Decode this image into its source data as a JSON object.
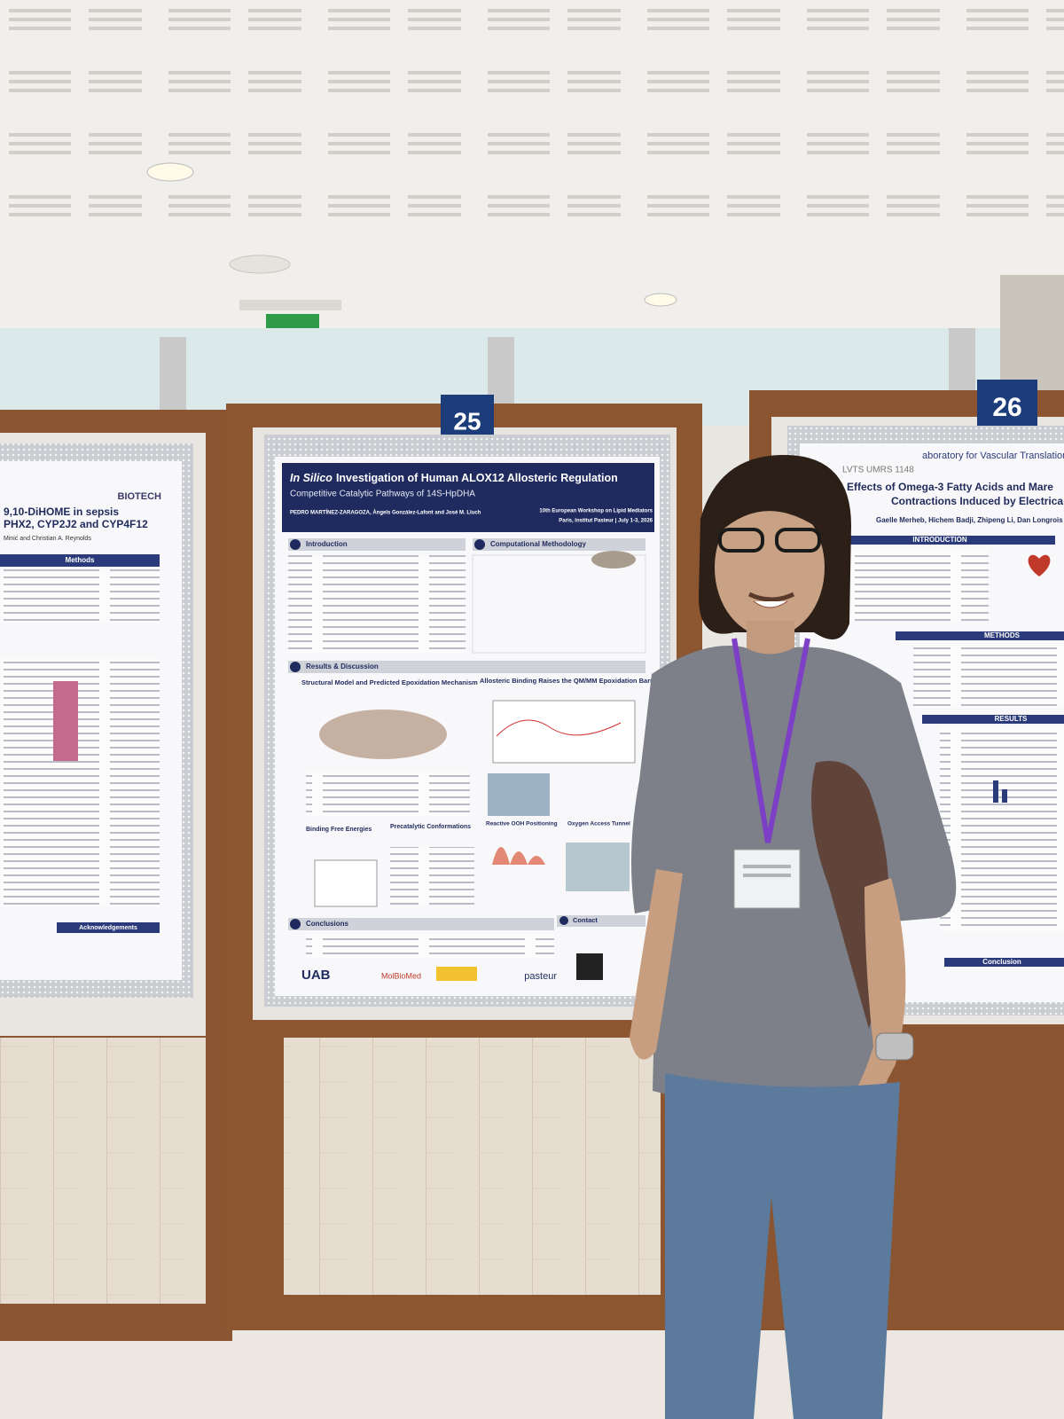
{
  "poster_25": {
    "number": "25",
    "title_italic": "In Silico",
    "title": "Investigation of Human ALOX12 Allosteric Regulation",
    "subtitle": "Competitive Catalytic Pathways of 14S-HpDHA",
    "authors": "PEDRO MARTÍNEZ-ZARAGOZA, Àngels González-Lafont and José M. Lluch",
    "event": "10th European Workshop on Lipid Mediators",
    "venue": "Paris, Institut Pasteur | July 1-3, 2026",
    "sections": [
      "Introduction",
      "Computational Methodology",
      "Results & Discussion",
      "Conclusions",
      "Contact"
    ],
    "subsections": [
      "Structural Model and Predicted Epoxidation Mechanism",
      "Allosteric Binding Raises the QM/MM Epoxidation Barrier",
      "Binding Free Energies",
      "Precatalytic Conformations",
      "Reactive OOH Positioning",
      "Oxygen Access Tunnel"
    ],
    "logos": [
      "UAB",
      "MolBioMed",
      "pasteur"
    ]
  },
  "poster_26": {
    "number": "26",
    "lab": "aboratory for Vascular Translational",
    "unit": "LVTS UMRS 1148",
    "title_line1": "Effects of Omega-3 Fatty Acids and Mare",
    "title_line2": "Contractions Induced by Electrica",
    "authors": "Gaelle Merheb, Hichem Badji, Zhipeng Li, Dan Longrois",
    "sections": [
      "INTRODUCTION",
      "METHODS",
      "RESULTS",
      "Conclusion"
    ]
  },
  "poster_left": {
    "brand": "BIOTECH",
    "title_line1": "9,10-DiHOME in sepsis",
    "title_line2": "PHX2, CYP2J2 and CYP4F12",
    "authors": "Minić and Christian A. Reynolds",
    "sections": [
      "Methods",
      "Acknowledgements"
    ]
  }
}
